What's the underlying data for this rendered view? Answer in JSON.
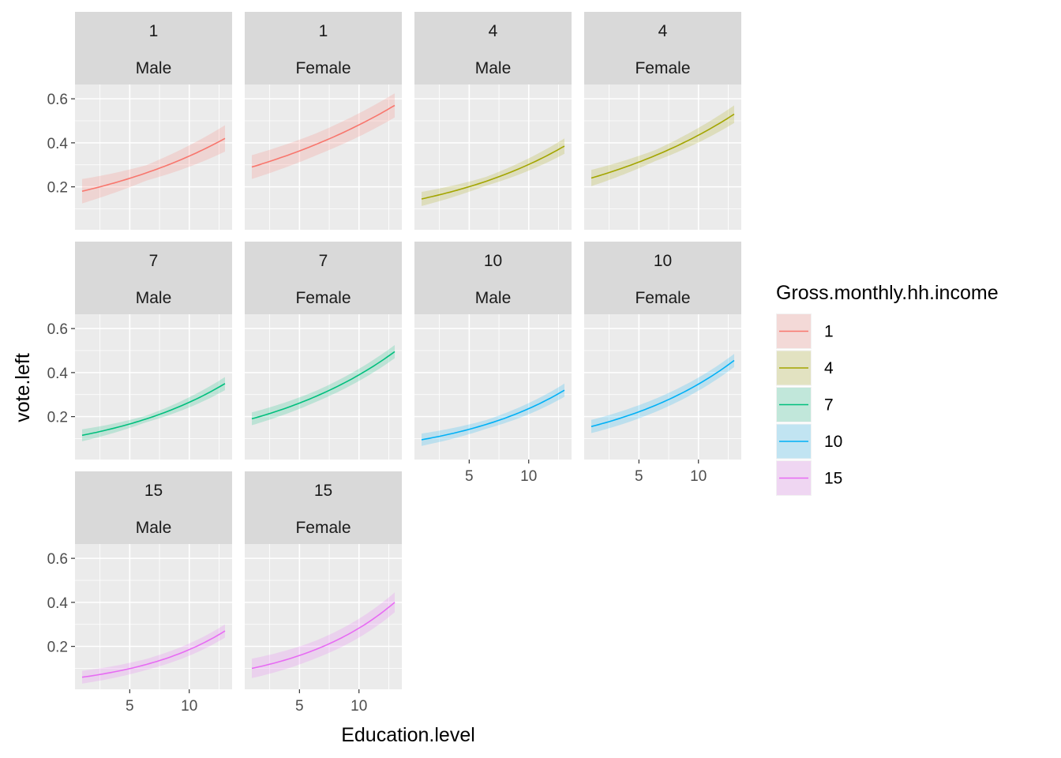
{
  "chart_data": {
    "type": "line",
    "xlabel": "Education.level",
    "ylabel": "vote.left",
    "x_range": [
      1,
      13
    ],
    "xlim": [
      0.4,
      13.6
    ],
    "ylim": [
      0.005,
      0.665
    ],
    "x_ticks": [
      5,
      10
    ],
    "x_tick_labels": [
      "5",
      "10"
    ],
    "y_ticks": [
      0.2,
      0.4,
      0.6
    ],
    "y_tick_labels": [
      "0.2",
      "0.4",
      "0.6"
    ],
    "grid": true,
    "confidence_band": true,
    "legend": {
      "title": "Gross.monthly.hh.income",
      "position": "right",
      "entries": [
        {
          "label": "1",
          "color": "#F8766D"
        },
        {
          "label": "4",
          "color": "#A3A500"
        },
        {
          "label": "7",
          "color": "#00BF7D"
        },
        {
          "label": "10",
          "color": "#00B0F6"
        },
        {
          "label": "15",
          "color": "#E76BF3"
        }
      ]
    },
    "panels": [
      {
        "income": "1",
        "gender": "Male",
        "color": "#F8766D",
        "y_start": 0.18,
        "y_end": 0.42,
        "band": [
          0.035,
          0.06
        ]
      },
      {
        "income": "1",
        "gender": "Female",
        "color": "#F8766D",
        "y_start": 0.29,
        "y_end": 0.57,
        "band": [
          0.05,
          0.055
        ]
      },
      {
        "income": "4",
        "gender": "Male",
        "color": "#A3A500",
        "y_start": 0.145,
        "y_end": 0.385,
        "band": [
          0.02,
          0.035
        ]
      },
      {
        "income": "4",
        "gender": "Female",
        "color": "#A3A500",
        "y_start": 0.24,
        "y_end": 0.53,
        "band": [
          0.025,
          0.04
        ]
      },
      {
        "income": "7",
        "gender": "Male",
        "color": "#00BF7D",
        "y_start": 0.115,
        "y_end": 0.35,
        "band": [
          0.015,
          0.03
        ]
      },
      {
        "income": "7",
        "gender": "Female",
        "color": "#00BF7D",
        "y_start": 0.19,
        "y_end": 0.495,
        "band": [
          0.025,
          0.03
        ]
      },
      {
        "income": "10",
        "gender": "Male",
        "color": "#00B0F6",
        "y_start": 0.095,
        "y_end": 0.32,
        "band": [
          0.02,
          0.03
        ]
      },
      {
        "income": "10",
        "gender": "Female",
        "color": "#00B0F6",
        "y_start": 0.155,
        "y_end": 0.455,
        "band": [
          0.03,
          0.03
        ]
      },
      {
        "income": "15",
        "gender": "Male",
        "color": "#E76BF3",
        "y_start": 0.06,
        "y_end": 0.27,
        "band": [
          0.025,
          0.03
        ]
      },
      {
        "income": "15",
        "gender": "Female",
        "color": "#E76BF3",
        "y_start": 0.1,
        "y_end": 0.4,
        "band": [
          0.04,
          0.045
        ]
      }
    ]
  }
}
